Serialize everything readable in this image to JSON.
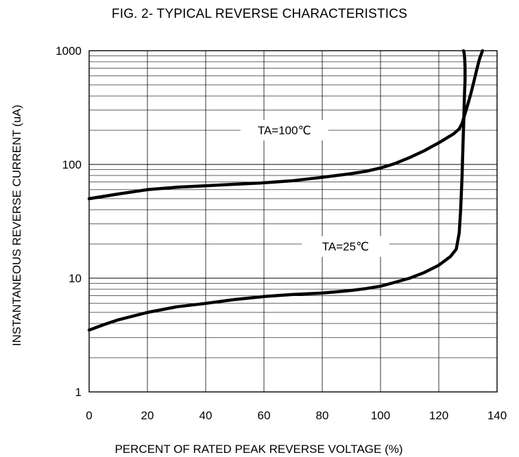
{
  "chart_data": {
    "type": "line",
    "title": "FIG. 2- TYPICAL REVERSE CHARACTERISTICS",
    "xlabel": "PERCENT OF RATED PEAK REVERSE VOLTAGE (%)",
    "ylabel": "INSTANTANEOUS REVERSE CURRENT (uA)",
    "xlim": [
      0,
      140
    ],
    "ylim": [
      1,
      1000
    ],
    "yscale": "log",
    "grid": true,
    "x_ticks": [
      "0",
      "20",
      "40",
      "60",
      "80",
      "100",
      "120",
      "140"
    ],
    "y_ticks": [
      "1",
      "10",
      "100",
      "1000"
    ],
    "series": [
      {
        "name": "TA=100℃",
        "x": [
          0,
          10,
          20,
          30,
          40,
          50,
          60,
          70,
          80,
          90,
          95,
          100,
          105,
          110,
          115,
          120,
          125,
          127,
          128,
          129,
          130,
          131,
          132,
          133,
          134,
          135
        ],
        "y": [
          50,
          55,
          60,
          63,
          65,
          67,
          69,
          72,
          77,
          83,
          87,
          93,
          102,
          115,
          132,
          155,
          185,
          205,
          230,
          280,
          340,
          420,
          530,
          680,
          850,
          1000
        ]
      },
      {
        "name": "TA=25℃",
        "x": [
          0,
          5,
          10,
          20,
          30,
          40,
          50,
          60,
          70,
          80,
          90,
          95,
          100,
          105,
          110,
          115,
          120,
          124,
          126,
          127,
          127.5,
          128,
          128.3,
          128.6,
          128.8,
          129,
          129,
          128.9,
          128.7,
          128.5
        ],
        "y": [
          3.5,
          3.9,
          4.3,
          5.0,
          5.6,
          6.0,
          6.5,
          6.9,
          7.2,
          7.4,
          7.8,
          8.1,
          8.5,
          9.2,
          10.0,
          11.2,
          13.0,
          15.5,
          18,
          25,
          40,
          80,
          150,
          250,
          400,
          550,
          700,
          850,
          950,
          1000
        ]
      }
    ],
    "annotations": [
      {
        "text": "TA=100℃",
        "x": 67,
        "y": 200
      },
      {
        "text": "TA=25℃",
        "x": 88,
        "y": 19
      }
    ]
  }
}
